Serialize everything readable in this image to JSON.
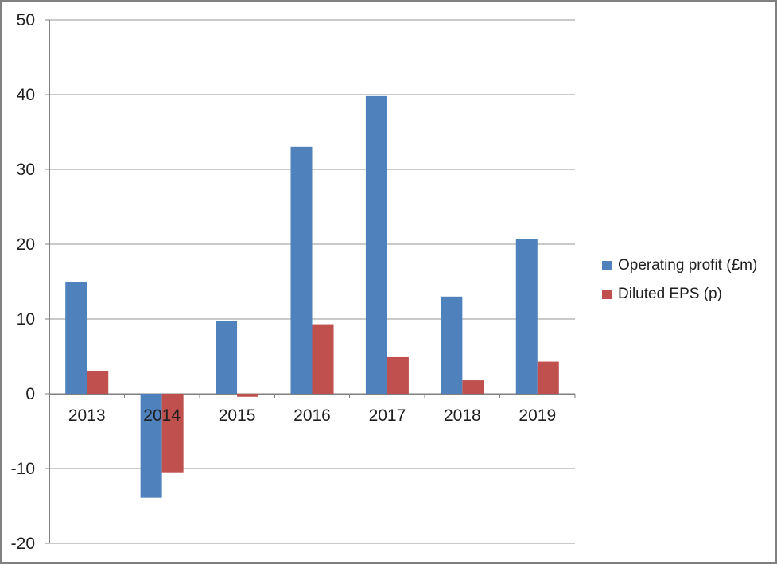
{
  "window": {
    "background": "#ffffff",
    "border_color": "#808080"
  },
  "chart_data": {
    "type": "bar",
    "title": "",
    "xlabel": "",
    "ylabel": "",
    "categories": [
      "2013",
      "2014",
      "2015",
      "2016",
      "2017",
      "2018",
      "2019"
    ],
    "series": [
      {
        "name": "Operating profit (£m)",
        "color": "#4f81bd",
        "values": [
          15.0,
          -13.9,
          9.7,
          33.0,
          39.8,
          13.0,
          20.7
        ]
      },
      {
        "name": "Diluted EPS (p)",
        "color": "#c0504d",
        "values": [
          3.0,
          -10.5,
          -0.4,
          9.3,
          4.9,
          1.8,
          4.3
        ]
      }
    ],
    "ylim": [
      -20,
      50
    ],
    "ytick_step": 10,
    "yticks": [
      50,
      40,
      30,
      20,
      10,
      0,
      -10,
      -20
    ],
    "grid": true,
    "legend_position": "right",
    "gridline_color": "#969696",
    "axis_color": "#808080",
    "text_color": "#1f1f1f"
  }
}
